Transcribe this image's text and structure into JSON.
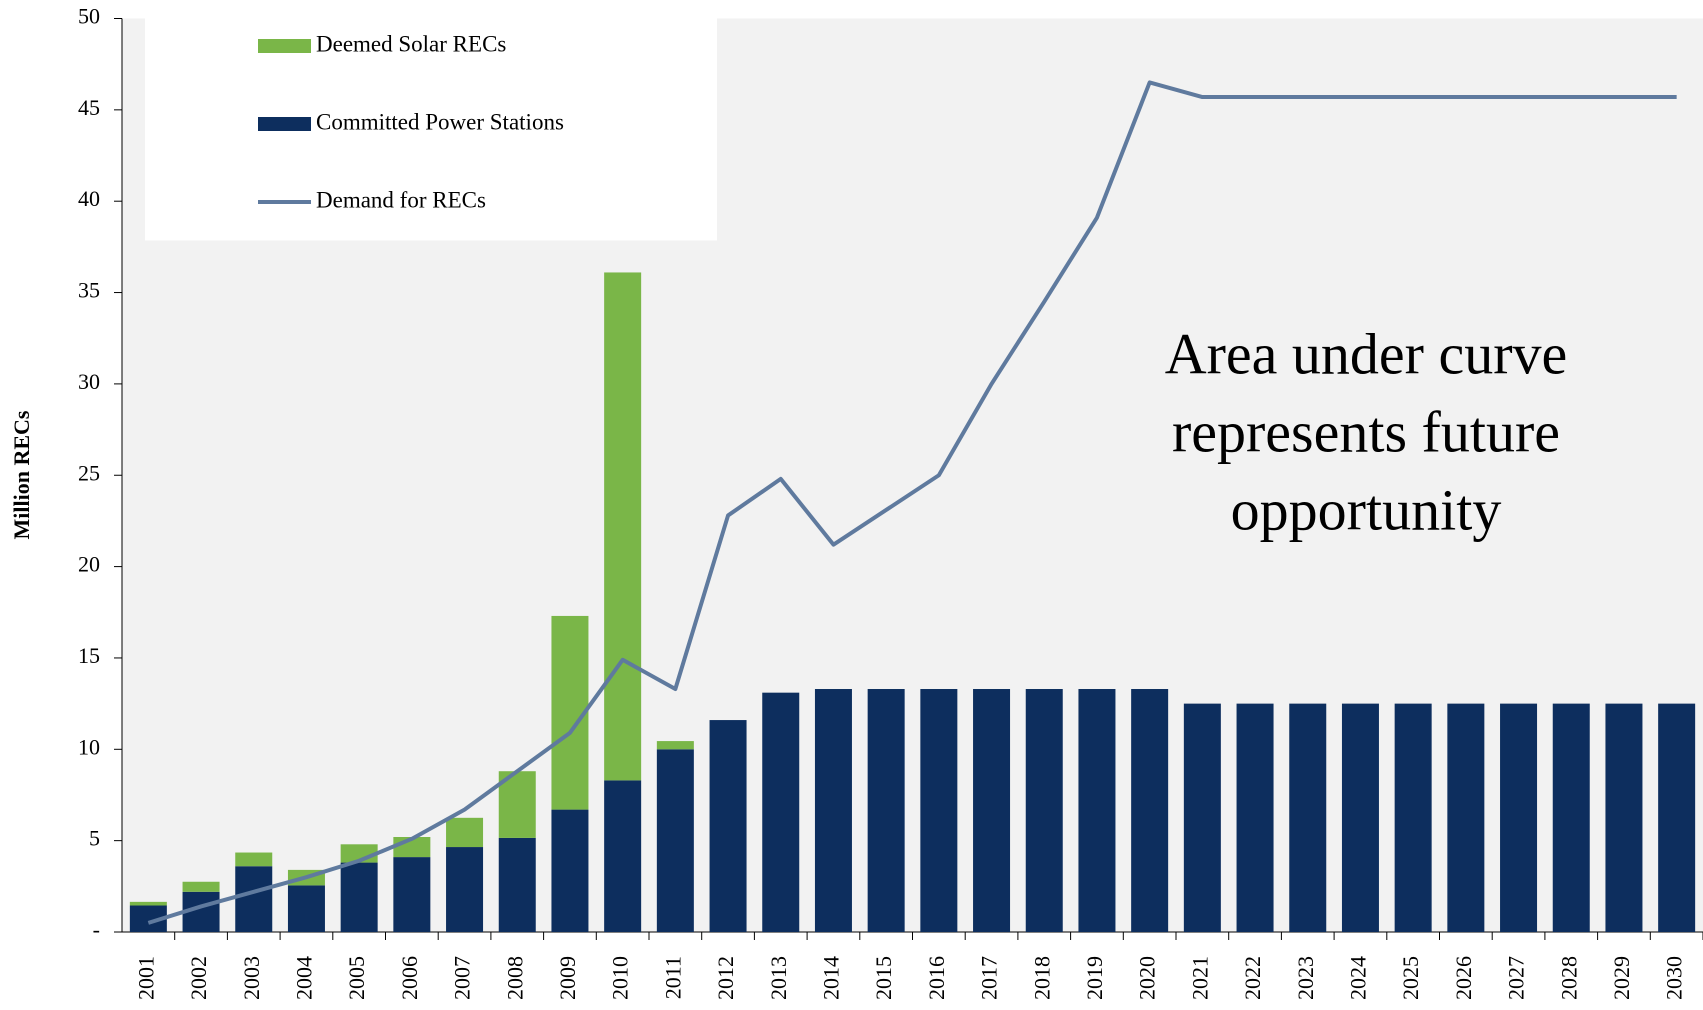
{
  "chart_data": {
    "type": "bar_line",
    "y_label": "Million RECs",
    "annotation": [
      "Area under curve",
      "represents future",
      "opportunity"
    ],
    "categories": [
      "2001",
      "2002",
      "2003",
      "2004",
      "2005",
      "2006",
      "2007",
      "2008",
      "2009",
      "2010",
      "2011",
      "2012",
      "2013",
      "2014",
      "2015",
      "2016",
      "2017",
      "2018",
      "2019",
      "2020",
      "2021",
      "2022",
      "2023",
      "2024",
      "2025",
      "2026",
      "2027",
      "2028",
      "2029",
      "2030"
    ],
    "series": [
      {
        "name": "Committed Power Stations",
        "type": "bar",
        "color": "#0d2e5e",
        "values": [
          1.45,
          2.2,
          3.6,
          2.55,
          3.8,
          4.1,
          4.65,
          5.15,
          6.7,
          8.3,
          10.0,
          11.6,
          13.1,
          13.3,
          13.3,
          13.3,
          13.3,
          13.3,
          13.3,
          13.3,
          12.5,
          12.5,
          12.5,
          12.5,
          12.5,
          12.5,
          12.5,
          12.5,
          12.5,
          12.5
        ]
      },
      {
        "name": "Deemed Solar RECs",
        "type": "bar",
        "color": "#7ab648",
        "values": [
          0.2,
          0.55,
          0.75,
          0.85,
          1.0,
          1.1,
          1.6,
          3.65,
          10.6,
          27.8,
          0.45,
          0,
          0,
          0,
          0,
          0,
          0,
          0,
          0,
          0,
          0,
          0,
          0,
          0,
          0,
          0,
          0,
          0,
          0,
          0
        ]
      },
      {
        "name": "Demand for RECs",
        "type": "line",
        "color": "#5f7a9e",
        "values": [
          0.5,
          1.4,
          2.2,
          3.0,
          3.9,
          5.1,
          6.7,
          8.8,
          10.9,
          14.9,
          13.3,
          22.8,
          24.8,
          21.2,
          23.1,
          25.0,
          30.0,
          34.5,
          39.1,
          46.5,
          45.7,
          45.7,
          45.7,
          45.7,
          45.7,
          45.7,
          45.7,
          45.7,
          45.7,
          45.7
        ]
      }
    ],
    "legend_order": [
      1,
      0,
      2
    ],
    "ylim": [
      0,
      50
    ],
    "yticks": [
      {
        "value": 0,
        "label": "-"
      },
      5,
      10,
      15,
      20,
      25,
      30,
      35,
      40,
      45,
      50
    ],
    "legend": "upper left"
  }
}
